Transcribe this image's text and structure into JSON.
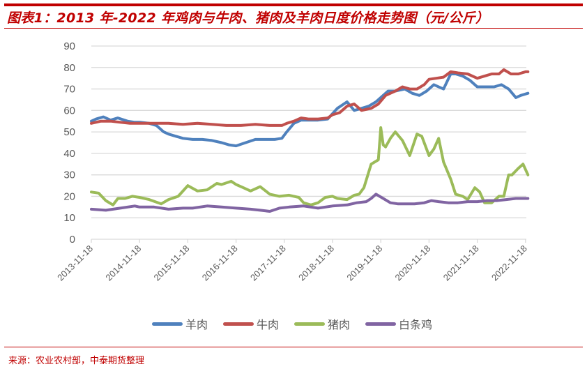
{
  "header": {
    "title": "图表1：2013 年-2022 年鸡肉与牛肉、猪肉及羊肉日度价格走势图（元/公斤）"
  },
  "footer": {
    "source": "来源：农业农村部，中泰期货整理"
  },
  "legend": [
    {
      "name": "羊肉",
      "color": "#4f81bd"
    },
    {
      "name": "牛肉",
      "color": "#c0504d"
    },
    {
      "name": "猪肉",
      "color": "#9bbb59"
    },
    {
      "name": "白条鸡",
      "color": "#8064a2"
    }
  ],
  "chart_data": {
    "type": "line",
    "title": "2013 年-2022 年鸡肉与牛肉、猪肉及羊肉日度价格走势图（元/公斤）",
    "xlabel": "",
    "ylabel": "元/公斤",
    "ylim": [
      0,
      90
    ],
    "yticks": [
      0,
      10,
      20,
      30,
      40,
      50,
      60,
      70,
      80,
      90
    ],
    "xticks": [
      "2013-11-18",
      "2014-11-18",
      "2015-11-18",
      "2016-11-18",
      "2017-11-18",
      "2018-11-18",
      "2019-11-18",
      "2020-11-18",
      "2021-11-18",
      "2022-11-18"
    ],
    "grid": true,
    "legend_position": "bottom",
    "x_unit": "years since 2013-11-18",
    "series": [
      {
        "name": "羊肉",
        "color": "#4f81bd",
        "x": [
          0,
          0.1,
          0.25,
          0.4,
          0.55,
          0.75,
          0.9,
          1.0,
          1.2,
          1.35,
          1.5,
          1.6,
          1.75,
          1.9,
          2.1,
          2.3,
          2.5,
          2.7,
          2.85,
          3.0,
          3.2,
          3.4,
          3.6,
          3.8,
          3.95,
          4.05,
          4.2,
          4.35,
          4.5,
          4.7,
          4.9,
          5.0,
          5.1,
          5.3,
          5.45,
          5.6,
          5.75,
          5.9,
          6.0,
          6.15,
          6.3,
          6.5,
          6.65,
          6.8,
          6.95,
          7.1,
          7.3,
          7.45,
          7.55,
          7.7,
          7.85,
          8.0,
          8.2,
          8.35,
          8.5,
          8.65,
          8.8,
          8.9,
          9.05
        ],
        "values": [
          55,
          56,
          57,
          55.5,
          56.5,
          55,
          54.5,
          54.5,
          54,
          53,
          50,
          49,
          48,
          47,
          46.5,
          46.5,
          46,
          45,
          44,
          43.5,
          45,
          46.5,
          46.5,
          46.5,
          47,
          50,
          54,
          55.5,
          55.5,
          55.5,
          56,
          58.5,
          61,
          64,
          60,
          61,
          62,
          64,
          66,
          69,
          69,
          70,
          68,
          67,
          69,
          72,
          70,
          77,
          77,
          76,
          74,
          71,
          71,
          71,
          72,
          70,
          66,
          67,
          68
        ]
      },
      {
        "name": "牛肉",
        "color": "#c0504d",
        "x": [
          0,
          0.2,
          0.4,
          0.6,
          0.8,
          1.0,
          1.3,
          1.6,
          1.9,
          2.2,
          2.5,
          2.8,
          3.1,
          3.4,
          3.7,
          3.95,
          4.05,
          4.2,
          4.35,
          4.5,
          4.7,
          4.9,
          5.0,
          5.15,
          5.3,
          5.45,
          5.6,
          5.8,
          5.95,
          6.1,
          6.3,
          6.45,
          6.6,
          6.75,
          6.9,
          7.0,
          7.15,
          7.3,
          7.45,
          7.6,
          7.8,
          8.0,
          8.15,
          8.3,
          8.45,
          8.55,
          8.7,
          8.85,
          9.0,
          9.05
        ],
        "values": [
          54,
          55,
          55,
          54.5,
          54,
          54,
          54,
          54,
          53.5,
          54,
          53.5,
          53,
          53,
          53.5,
          53,
          53,
          54,
          55,
          56.5,
          56,
          56,
          56.5,
          58,
          59,
          62,
          63,
          60,
          61,
          63,
          67,
          69,
          71,
          70,
          70,
          72,
          74.5,
          75,
          75.5,
          78,
          77.5,
          77,
          75,
          76,
          77,
          77,
          79,
          77,
          77,
          78,
          78
        ]
      },
      {
        "name": "猪肉",
        "color": "#9bbb59",
        "x": [
          0,
          0.15,
          0.3,
          0.45,
          0.55,
          0.7,
          0.85,
          1.0,
          1.2,
          1.45,
          1.6,
          1.8,
          2.0,
          2.2,
          2.4,
          2.6,
          2.7,
          2.9,
          3.0,
          3.15,
          3.3,
          3.5,
          3.7,
          3.9,
          4.1,
          4.3,
          4.4,
          4.55,
          4.7,
          4.85,
          5.0,
          5.1,
          5.3,
          5.45,
          5.55,
          5.65,
          5.8,
          5.95,
          6.0,
          6.05,
          6.1,
          6.2,
          6.3,
          6.45,
          6.6,
          6.75,
          6.85,
          7.0,
          7.1,
          7.2,
          7.3,
          7.45,
          7.55,
          7.7,
          7.8,
          7.95,
          8.05,
          8.15,
          8.3,
          8.45,
          8.55,
          8.65,
          8.72,
          8.85,
          8.95,
          9.05
        ],
        "values": [
          22,
          21.5,
          18,
          16,
          19,
          19,
          20,
          19.5,
          18.5,
          16.5,
          18.5,
          20,
          25,
          22.5,
          23,
          26,
          25.5,
          27,
          25.5,
          24,
          22.5,
          24.5,
          21,
          20,
          20.5,
          19.5,
          17,
          16,
          17,
          19.5,
          20,
          19,
          18.5,
          20.5,
          21,
          24,
          35,
          37,
          52,
          44,
          43,
          47,
          50,
          46,
          39,
          49,
          48,
          39,
          42,
          47,
          36,
          28,
          21,
          20,
          18.5,
          24,
          22,
          17,
          17,
          20,
          20,
          30,
          30,
          33,
          35,
          30
        ]
      },
      {
        "name": "白条鸡",
        "color": "#8064a2",
        "x": [
          0,
          0.3,
          0.6,
          0.9,
          1.0,
          1.3,
          1.6,
          1.9,
          2.1,
          2.4,
          2.7,
          3.0,
          3.3,
          3.5,
          3.7,
          3.9,
          4.1,
          4.4,
          4.7,
          5.0,
          5.3,
          5.5,
          5.7,
          5.8,
          5.9,
          6.05,
          6.2,
          6.35,
          6.5,
          6.7,
          6.9,
          7.05,
          7.2,
          7.4,
          7.6,
          7.8,
          8.0,
          8.2,
          8.4,
          8.6,
          8.8,
          9.05
        ],
        "values": [
          14,
          13.5,
          14.5,
          15.5,
          15,
          15,
          14,
          14.5,
          14.5,
          15.5,
          15,
          14.5,
          14,
          13.5,
          13,
          14.5,
          15,
          15.5,
          14.5,
          15.5,
          16,
          17,
          17.5,
          19,
          21,
          19,
          17,
          16.5,
          16.5,
          16.5,
          17,
          18,
          17.5,
          17,
          17,
          17.5,
          17.5,
          18,
          18,
          18.5,
          19,
          19
        ]
      }
    ]
  }
}
